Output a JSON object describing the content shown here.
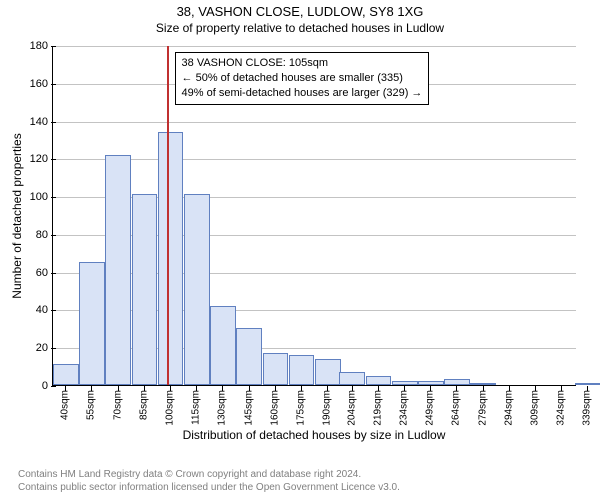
{
  "title": "38, VASHON CLOSE, LUDLOW, SY8 1XG",
  "subtitle": "Size of property relative to detached houses in Ludlow",
  "ylabel": "Number of detached properties",
  "xlabel": "Distribution of detached houses by size in Ludlow",
  "chart": {
    "type": "histogram",
    "bar_fill": "#d9e3f6",
    "bar_border": "#6080c0",
    "grid_color": "#888888",
    "background": "#ffffff",
    "ylim": [
      0,
      180
    ],
    "yticks": [
      0,
      20,
      40,
      60,
      80,
      100,
      120,
      140,
      160,
      180
    ],
    "xlim": [
      40,
      340
    ],
    "bin_width": 15,
    "bins": [
      {
        "x": 40,
        "count": 11
      },
      {
        "x": 55,
        "count": 65
      },
      {
        "x": 70,
        "count": 122
      },
      {
        "x": 85,
        "count": 101
      },
      {
        "x": 100,
        "count": 134
      },
      {
        "x": 115,
        "count": 101
      },
      {
        "x": 130,
        "count": 42
      },
      {
        "x": 145,
        "count": 30
      },
      {
        "x": 160,
        "count": 17
      },
      {
        "x": 175,
        "count": 16
      },
      {
        "x": 190,
        "count": 14
      },
      {
        "x": 204,
        "count": 7
      },
      {
        "x": 219,
        "count": 5
      },
      {
        "x": 234,
        "count": 2
      },
      {
        "x": 249,
        "count": 2
      },
      {
        "x": 264,
        "count": 3
      },
      {
        "x": 279,
        "count": 1
      },
      {
        "x": 294,
        "count": 0
      },
      {
        "x": 309,
        "count": 0
      },
      {
        "x": 324,
        "count": 0
      },
      {
        "x": 339,
        "count": 1
      }
    ],
    "x_tick_labels": [
      "40sqm",
      "55sqm",
      "70sqm",
      "85sqm",
      "100sqm",
      "115sqm",
      "130sqm",
      "145sqm",
      "160sqm",
      "175sqm",
      "190sqm",
      "204sqm",
      "219sqm",
      "234sqm",
      "249sqm",
      "264sqm",
      "279sqm",
      "294sqm",
      "309sqm",
      "324sqm",
      "339sqm"
    ],
    "reference_line": {
      "x": 105,
      "color": "#c03030"
    },
    "annotation": {
      "lines": [
        "38 VASHON CLOSE: 105sqm",
        "← 50% of detached houses are smaller (335)",
        "49% of semi-detached houses are larger (329) →"
      ],
      "border": "#000000",
      "background": "#ffffff"
    }
  },
  "footer": {
    "line1": "Contains HM Land Registry data © Crown copyright and database right 2024.",
    "line2": "Contains public sector information licensed under the Open Government Licence v3.0."
  }
}
